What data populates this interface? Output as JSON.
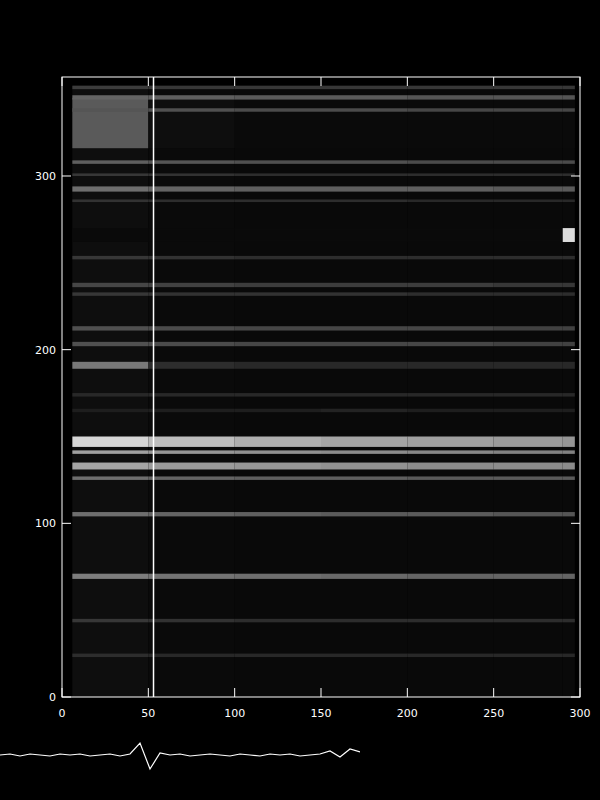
{
  "chart_data": [
    {
      "type": "heatmap",
      "xlim": [
        0,
        300
      ],
      "ylim": [
        0,
        357
      ],
      "xticks": [
        0,
        50,
        100,
        150,
        200,
        250,
        300
      ],
      "yticks": [
        0,
        100,
        200,
        300
      ],
      "cursor_x": 53,
      "heatmap": {
        "x_edges": [
          6,
          50,
          100,
          150,
          200,
          250,
          290,
          297
        ],
        "rows": [
          {
            "y0": 0,
            "y1": 352,
            "values": [
              14,
              10,
              9,
              9,
              9,
              9,
              9
            ]
          },
          {
            "y0": 316,
            "y1": 345,
            "values": [
              90,
              14,
              10,
              10,
              10,
              10,
              10
            ]
          },
          {
            "y0": 350,
            "y1": 352,
            "values": [
              60,
              55,
              55,
              55,
              55,
              55,
              55
            ]
          },
          {
            "y0": 344,
            "y1": 346.5,
            "values": [
              100,
              95,
              90,
              90,
              85,
              85,
              85
            ]
          },
          {
            "y0": 337,
            "y1": 339,
            "values": [
              85,
              80,
              75,
              75,
              70,
              70,
              70
            ]
          },
          {
            "y0": 307,
            "y1": 309,
            "values": [
              95,
              85,
              80,
              80,
              75,
              75,
              75
            ]
          },
          {
            "y0": 300,
            "y1": 301.5,
            "values": [
              55,
              50,
              45,
              45,
              45,
              45,
              45
            ]
          },
          {
            "y0": 291,
            "y1": 294,
            "values": [
              110,
              100,
              95,
              95,
              95,
              90,
              90
            ]
          },
          {
            "y0": 285,
            "y1": 286.5,
            "values": [
              50,
              45,
              45,
              45,
              40,
              40,
              40
            ]
          },
          {
            "y0": 262,
            "y1": 270,
            "values": [
              10,
              10,
              10,
              10,
              10,
              10,
              220
            ]
          },
          {
            "y0": 252,
            "y1": 254,
            "values": [
              55,
              50,
              45,
              45,
              45,
              45,
              45
            ]
          },
          {
            "y0": 236,
            "y1": 238.5,
            "values": [
              70,
              65,
              60,
              60,
              60,
              55,
              55
            ]
          },
          {
            "y0": 231,
            "y1": 233,
            "values": [
              55,
              50,
              50,
              50,
              45,
              45,
              45
            ]
          },
          {
            "y0": 211,
            "y1": 213.5,
            "values": [
              80,
              75,
              70,
              70,
              70,
              65,
              65
            ]
          },
          {
            "y0": 202,
            "y1": 204.5,
            "values": [
              80,
              75,
              70,
              70,
              70,
              65,
              65
            ]
          },
          {
            "y0": 189,
            "y1": 193,
            "values": [
              120,
              45,
              40,
              40,
              40,
              40,
              40
            ]
          },
          {
            "y0": 173,
            "y1": 175,
            "values": [
              40,
              40,
              40,
              40,
              40,
              40,
              40
            ]
          },
          {
            "y0": 164,
            "y1": 166,
            "values": [
              30,
              30,
              30,
              35,
              30,
              30,
              30
            ]
          },
          {
            "y0": 144,
            "y1": 150,
            "values": [
              215,
              190,
              175,
              165,
              160,
              155,
              150
            ]
          },
          {
            "y0": 140,
            "y1": 142,
            "values": [
              160,
              150,
              145,
              140,
              135,
              130,
              130
            ]
          },
          {
            "y0": 131,
            "y1": 135,
            "values": [
              165,
              155,
              150,
              145,
              140,
              140,
              140
            ]
          },
          {
            "y0": 125,
            "y1": 127,
            "values": [
              110,
              100,
              95,
              95,
              90,
              90,
              90
            ]
          },
          {
            "y0": 104,
            "y1": 106.5,
            "values": [
              110,
              100,
              95,
              90,
              90,
              85,
              85
            ]
          },
          {
            "y0": 68,
            "y1": 71,
            "values": [
              125,
              115,
              110,
              105,
              100,
              100,
              100
            ]
          },
          {
            "y0": 43,
            "y1": 45,
            "values": [
              55,
              50,
              45,
              45,
              45,
              45,
              45
            ]
          },
          {
            "y0": 23,
            "y1": 25,
            "values": [
              45,
              40,
              40,
              40,
              40,
              40,
              40
            ]
          }
        ]
      }
    },
    {
      "type": "line",
      "color": "#ffffff",
      "tick_labels": false,
      "xlim": [
        0,
        36
      ],
      "ylim": [
        -20,
        20
      ],
      "x": [
        0,
        1,
        2,
        3,
        4,
        5,
        6,
        7,
        8,
        9,
        10,
        11,
        12,
        13,
        14,
        15,
        16,
        17,
        18,
        19,
        20,
        21,
        22,
        23,
        24,
        25,
        26,
        27,
        28,
        29,
        30,
        31,
        32,
        33,
        34,
        35,
        36
      ],
      "values": [
        0,
        1,
        -1,
        1,
        0,
        -1,
        1,
        0,
        1,
        -1,
        0,
        1,
        -1,
        1,
        12,
        -14,
        2,
        0,
        1,
        -1,
        0,
        1,
        0,
        -1,
        1,
        0,
        -1,
        1,
        0,
        1,
        -1,
        0,
        1,
        4,
        -2,
        6,
        3
      ]
    }
  ]
}
